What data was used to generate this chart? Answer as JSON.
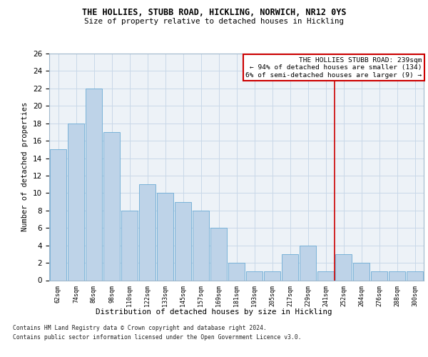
{
  "title1": "THE HOLLIES, STUBB ROAD, HICKLING, NORWICH, NR12 0YS",
  "title2": "Size of property relative to detached houses in Hickling",
  "xlabel": "Distribution of detached houses by size in Hickling",
  "ylabel": "Number of detached properties",
  "categories": [
    "62sqm",
    "74sqm",
    "86sqm",
    "98sqm",
    "110sqm",
    "122sqm",
    "133sqm",
    "145sqm",
    "157sqm",
    "169sqm",
    "181sqm",
    "193sqm",
    "205sqm",
    "217sqm",
    "229sqm",
    "241sqm",
    "252sqm",
    "264sqm",
    "276sqm",
    "288sqm",
    "300sqm"
  ],
  "values": [
    15,
    18,
    22,
    17,
    8,
    11,
    10,
    9,
    8,
    6,
    2,
    1,
    1,
    3,
    4,
    1,
    3,
    2,
    1,
    1,
    1
  ],
  "bar_color": "#bed3e8",
  "bar_edge_color": "#6aaad4",
  "property_line_x": 15.5,
  "annotation_line1": "THE HOLLIES STUBB ROAD: 239sqm",
  "annotation_line2": "← 94% of detached houses are smaller (134)",
  "annotation_line3": "6% of semi-detached houses are larger (9) →",
  "annotation_box_color": "#cc0000",
  "ylim": [
    0,
    26
  ],
  "yticks": [
    0,
    2,
    4,
    6,
    8,
    10,
    12,
    14,
    16,
    18,
    20,
    22,
    24,
    26
  ],
  "grid_color": "#c8d8e8",
  "background_color": "#edf2f7",
  "footnote1": "Contains HM Land Registry data © Crown copyright and database right 2024.",
  "footnote2": "Contains public sector information licensed under the Open Government Licence v3.0."
}
